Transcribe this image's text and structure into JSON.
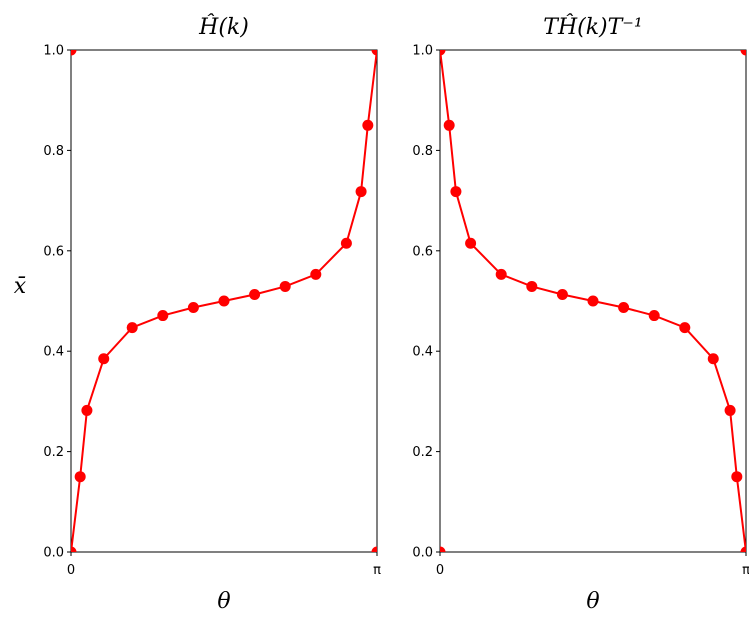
{
  "chart_data": [
    {
      "type": "line",
      "title": "Ĥ(k)",
      "xlabel": "θ",
      "ylabel": "x̄",
      "xlim": [
        0,
        1
      ],
      "ylim": [
        0,
        1
      ],
      "xticks": [
        {
          "value": 0,
          "label": "0"
        },
        {
          "value": 1,
          "label": "π"
        }
      ],
      "yticks": [
        {
          "value": 0.0,
          "label": "0.0"
        },
        {
          "value": 0.2,
          "label": "0.2"
        },
        {
          "value": 0.4,
          "label": "0.4"
        },
        {
          "value": 0.6,
          "label": "0.6"
        },
        {
          "value": 0.8,
          "label": "0.8"
        },
        {
          "value": 1.0,
          "label": "1.0"
        }
      ],
      "series": [
        {
          "color": "#ff0000",
          "points": [
            {
              "x": 0.0,
              "y": 0.0
            },
            {
              "x": 0.03,
              "y": 0.15
            },
            {
              "x": 0.052,
              "y": 0.282
            },
            {
              "x": 0.107,
              "y": 0.385
            },
            {
              "x": 0.2,
              "y": 0.447
            },
            {
              "x": 0.3,
              "y": 0.471
            },
            {
              "x": 0.4,
              "y": 0.487
            },
            {
              "x": 0.5,
              "y": 0.5
            },
            {
              "x": 0.6,
              "y": 0.513
            },
            {
              "x": 0.7,
              "y": 0.529
            },
            {
              "x": 0.8,
              "y": 0.553
            },
            {
              "x": 0.9,
              "y": 0.615
            },
            {
              "x": 0.948,
              "y": 0.718
            },
            {
              "x": 0.97,
              "y": 0.85
            },
            {
              "x": 1.0,
              "y": 1.0
            }
          ]
        }
      ],
      "edge_points": [
        {
          "x": 0,
          "y": 1
        },
        {
          "x": 1,
          "y": 0
        }
      ]
    },
    {
      "type": "line",
      "title": "TĤ(k)T⁻¹",
      "xlabel": "θ",
      "ylabel": "",
      "xlim": [
        0,
        1
      ],
      "ylim": [
        0,
        1
      ],
      "xticks": [
        {
          "value": 0,
          "label": "0"
        },
        {
          "value": 1,
          "label": "π"
        }
      ],
      "yticks": [
        {
          "value": 0.0,
          "label": "0.0"
        },
        {
          "value": 0.2,
          "label": "0.2"
        },
        {
          "value": 0.4,
          "label": "0.4"
        },
        {
          "value": 0.6,
          "label": "0.6"
        },
        {
          "value": 0.8,
          "label": "0.8"
        },
        {
          "value": 1.0,
          "label": "1.0"
        }
      ],
      "series": [
        {
          "color": "#ff0000",
          "points": [
            {
              "x": 0.0,
              "y": 1.0
            },
            {
              "x": 0.03,
              "y": 0.85
            },
            {
              "x": 0.052,
              "y": 0.718
            },
            {
              "x": 0.1,
              "y": 0.615
            },
            {
              "x": 0.2,
              "y": 0.553
            },
            {
              "x": 0.3,
              "y": 0.529
            },
            {
              "x": 0.4,
              "y": 0.513
            },
            {
              "x": 0.5,
              "y": 0.5
            },
            {
              "x": 0.6,
              "y": 0.487
            },
            {
              "x": 0.7,
              "y": 0.471
            },
            {
              "x": 0.8,
              "y": 0.447
            },
            {
              "x": 0.893,
              "y": 0.385
            },
            {
              "x": 0.948,
              "y": 0.282
            },
            {
              "x": 0.97,
              "y": 0.15
            },
            {
              "x": 1.0,
              "y": 0.0
            }
          ]
        }
      ],
      "edge_points": [
        {
          "x": 0,
          "y": 0
        },
        {
          "x": 1,
          "y": 1
        }
      ]
    }
  ]
}
